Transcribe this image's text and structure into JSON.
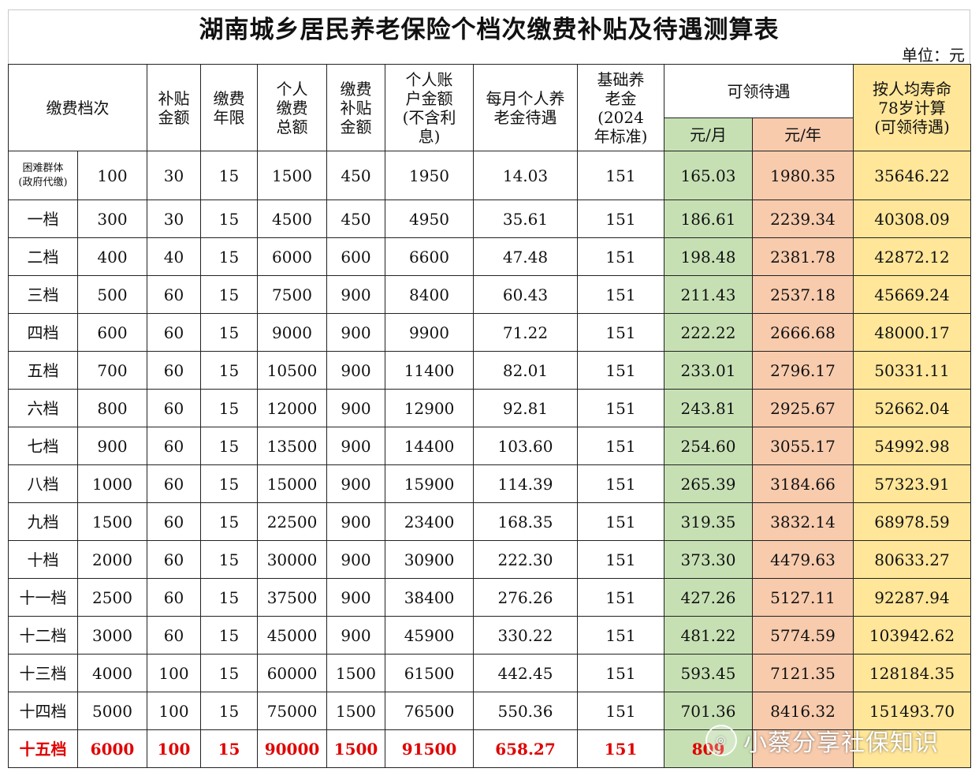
{
  "title": "湖南城乡居民养老保险个档次缴费补贴及待遇测算表",
  "unit": "单位：元",
  "headers": {
    "tier": "缴费档次",
    "subsidy": [
      "补贴",
      "金额"
    ],
    "years": [
      "缴费",
      "年限"
    ],
    "total": [
      "个人",
      "缴费",
      "总额"
    ],
    "subsidy_total": [
      "缴费",
      "补贴",
      "金额"
    ],
    "account": [
      "个人账",
      "户金额",
      "(不含利",
      "息)"
    ],
    "monthly_personal": [
      "每月个人养",
      "老金待遇"
    ],
    "basic": [
      "基础养",
      "老金",
      "(2024",
      "年标准)"
    ],
    "benefit": "可领待遇",
    "per_month": "元/月",
    "per_year": "元/年",
    "life": [
      "按人均寿命",
      "78岁计算",
      "(可领待遇)"
    ]
  },
  "colors": {
    "green": "#c6e0b4",
    "orange": "#f8cbad",
    "yellow": "#ffe699",
    "highlight_text": "#e00000"
  },
  "rows": [
    [
      "困难群体\n(政府代缴)",
      "100",
      "30",
      "15",
      "1500",
      "450",
      "1950",
      "14.03",
      "151",
      "165.03",
      "1980.35",
      "35646.22"
    ],
    [
      "一档",
      "300",
      "30",
      "15",
      "4500",
      "450",
      "4950",
      "35.61",
      "151",
      "186.61",
      "2239.34",
      "40308.09"
    ],
    [
      "二档",
      "400",
      "40",
      "15",
      "6000",
      "600",
      "6600",
      "47.48",
      "151",
      "198.48",
      "2381.78",
      "42872.12"
    ],
    [
      "三档",
      "500",
      "60",
      "15",
      "7500",
      "900",
      "8400",
      "60.43",
      "151",
      "211.43",
      "2537.18",
      "45669.24"
    ],
    [
      "四档",
      "600",
      "60",
      "15",
      "9000",
      "900",
      "9900",
      "71.22",
      "151",
      "222.22",
      "2666.68",
      "48000.17"
    ],
    [
      "五档",
      "700",
      "60",
      "15",
      "10500",
      "900",
      "11400",
      "82.01",
      "151",
      "233.01",
      "2796.17",
      "50331.11"
    ],
    [
      "六档",
      "800",
      "60",
      "15",
      "12000",
      "900",
      "12900",
      "92.81",
      "151",
      "243.81",
      "2925.67",
      "52662.04"
    ],
    [
      "七档",
      "900",
      "60",
      "15",
      "13500",
      "900",
      "14400",
      "103.60",
      "151",
      "254.60",
      "3055.17",
      "54992.98"
    ],
    [
      "八档",
      "1000",
      "60",
      "15",
      "15000",
      "900",
      "15900",
      "114.39",
      "151",
      "265.39",
      "3184.66",
      "57323.91"
    ],
    [
      "九档",
      "1500",
      "60",
      "15",
      "22500",
      "900",
      "23400",
      "168.35",
      "151",
      "319.35",
      "3832.14",
      "68978.59"
    ],
    [
      "十档",
      "2000",
      "60",
      "15",
      "30000",
      "900",
      "30900",
      "222.30",
      "151",
      "373.30",
      "4479.63",
      "80633.27"
    ],
    [
      "十一档",
      "2500",
      "60",
      "15",
      "37500",
      "900",
      "38400",
      "276.26",
      "151",
      "427.26",
      "5127.11",
      "92287.94"
    ],
    [
      "十二档",
      "3000",
      "60",
      "15",
      "45000",
      "900",
      "45900",
      "330.22",
      "151",
      "481.22",
      "5774.59",
      "103942.62"
    ],
    [
      "十三档",
      "4000",
      "100",
      "15",
      "60000",
      "1500",
      "61500",
      "442.45",
      "151",
      "593.45",
      "7121.35",
      "128184.35"
    ],
    [
      "十四档",
      "5000",
      "100",
      "15",
      "75000",
      "1500",
      "76500",
      "550.36",
      "151",
      "701.36",
      "8416.32",
      "151493.70"
    ],
    [
      "十五档",
      "6000",
      "100",
      "15",
      "90000",
      "1500",
      "91500",
      "658.27",
      "151",
      "809",
      "",
      ""
    ]
  ],
  "watermark": "小蔡分享社保知识"
}
